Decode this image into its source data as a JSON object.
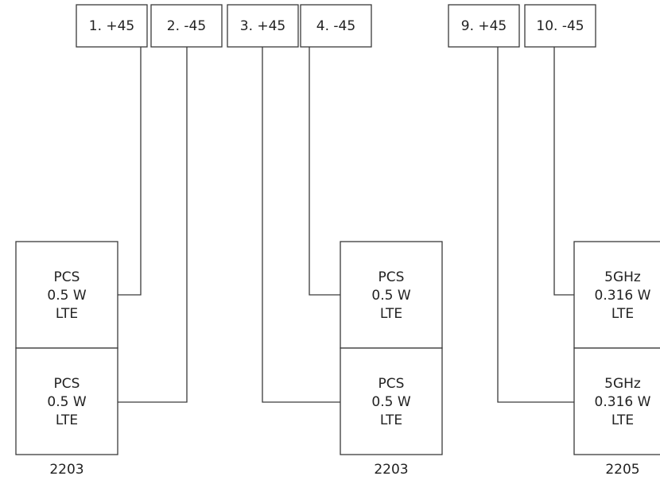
{
  "ports": {
    "p1": "1. +45",
    "p2": "2. -45",
    "p3": "3. +45",
    "p4": "4. -45",
    "p9": "9. +45",
    "p10": "10. -45"
  },
  "units": [
    {
      "label": "2203",
      "radios": [
        {
          "band": "PCS",
          "power": "0.5 W",
          "tech": "LTE"
        },
        {
          "band": "PCS",
          "power": "0.5 W",
          "tech": "LTE"
        }
      ]
    },
    {
      "label": "2203",
      "radios": [
        {
          "band": "PCS",
          "power": "0.5 W",
          "tech": "LTE"
        },
        {
          "band": "PCS",
          "power": "0.5 W",
          "tech": "LTE"
        }
      ]
    },
    {
      "label": "2205",
      "radios": [
        {
          "band": "5GHz",
          "power": "0.316 W",
          "tech": "LTE"
        },
        {
          "band": "5GHz",
          "power": "0.316 W",
          "tech": "LTE"
        }
      ]
    }
  ]
}
